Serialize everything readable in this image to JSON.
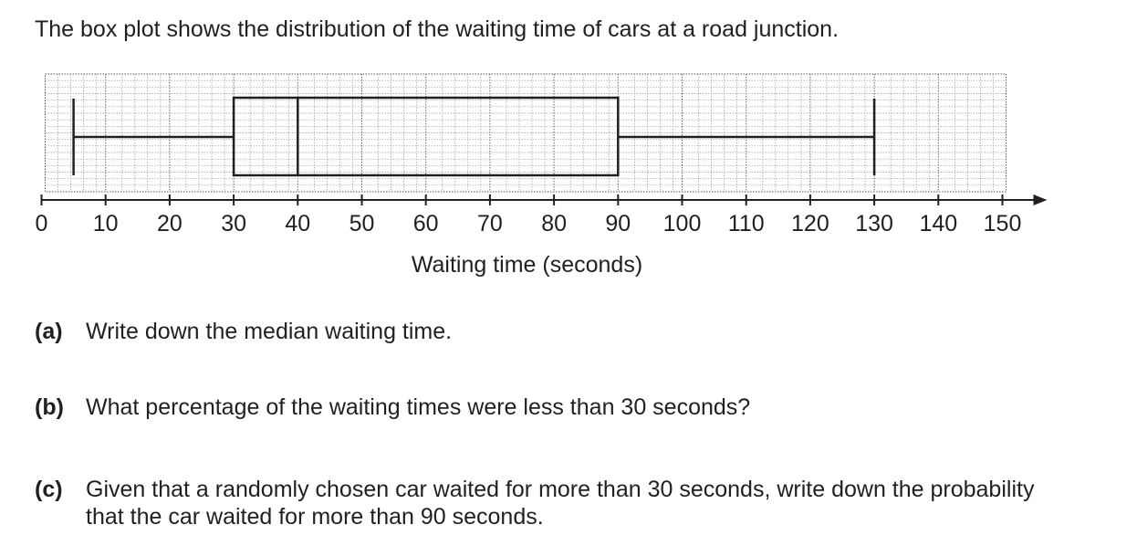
{
  "intro": "The box plot shows the distribution of the waiting time of cars at a road junction.",
  "chart_data": {
    "type": "boxplot",
    "xlabel": "Waiting time (seconds)",
    "xlim": [
      0,
      150
    ],
    "ticks": [
      0,
      10,
      20,
      30,
      40,
      50,
      60,
      70,
      80,
      90,
      100,
      110,
      120,
      130,
      140,
      150
    ],
    "tick_labels": [
      "0",
      "10",
      "20",
      "30",
      "40",
      "50",
      "60",
      "70",
      "80",
      "90",
      "100",
      "110",
      "120",
      "130",
      "140",
      "150"
    ],
    "box": {
      "min": 5,
      "q1": 30,
      "median": 40,
      "q3": 90,
      "max": 130
    },
    "grid": true
  },
  "questions": [
    {
      "label": "(a)",
      "text": "Write down the median waiting time."
    },
    {
      "label": "(b)",
      "text": "What percentage of the waiting times were less than 30 seconds?"
    },
    {
      "label": "(c)",
      "text": "Given that a randomly chosen car waited for more than 30 seconds, write down the probability that the car waited for more than 90 seconds."
    }
  ]
}
